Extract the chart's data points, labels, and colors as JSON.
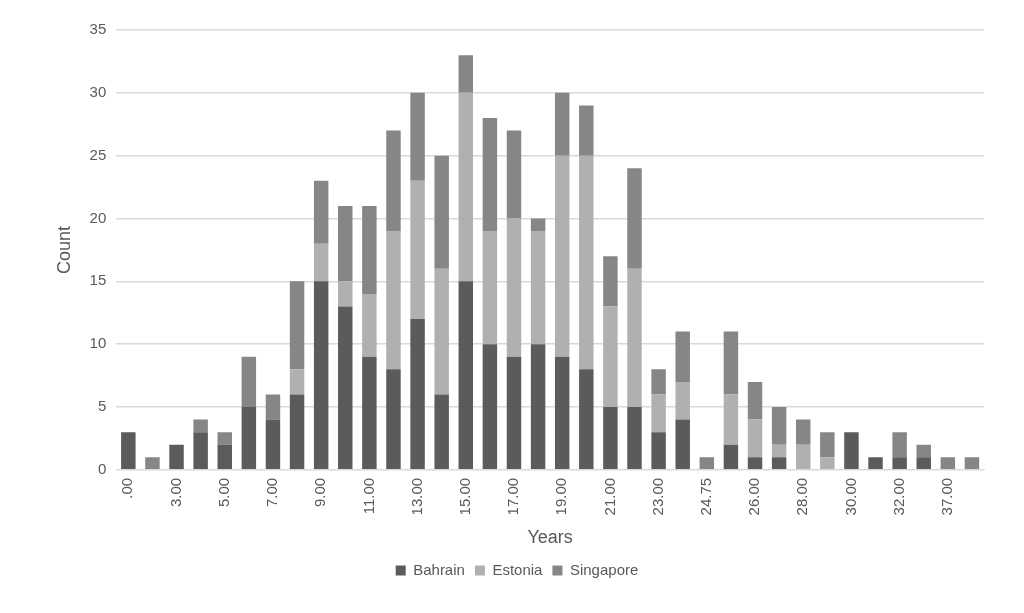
{
  "chart_data": {
    "type": "bar",
    "stacked": true,
    "xlabel": "Years",
    "ylabel": "Count",
    "categories": [
      ".00",
      null,
      "3.00",
      null,
      "5.00",
      null,
      "7.00",
      null,
      "9.00",
      null,
      "11.00",
      null,
      "13.00",
      null,
      "15.00",
      null,
      "17.00",
      null,
      "19.00",
      null,
      "21.00",
      null,
      "23.00",
      null,
      "24.75",
      null,
      "26.00",
      null,
      "28.00",
      null,
      "30.00",
      null,
      "32.00",
      null,
      "37.00",
      null
    ],
    "series": [
      {
        "name": "Bahrain",
        "color": "#5b5b5b",
        "values": [
          3,
          0,
          2,
          3,
          2,
          5,
          4,
          6,
          15,
          13,
          9,
          8,
          12,
          6,
          15,
          10,
          9,
          10,
          9,
          8,
          5,
          5,
          3,
          4,
          0,
          2,
          1,
          1,
          0,
          0,
          3,
          1,
          1,
          1,
          0,
          0
        ]
      },
      {
        "name": "Estonia",
        "color": "#b0b0b0",
        "values": [
          0,
          0,
          0,
          0,
          0,
          0,
          0,
          2,
          3,
          2,
          5,
          11,
          11,
          10,
          15,
          9,
          11,
          9,
          16,
          17,
          8,
          11,
          3,
          3,
          0,
          4,
          3,
          1,
          2,
          1,
          0,
          0,
          0,
          0,
          0,
          0
        ]
      },
      {
        "name": "Singapore",
        "color": "#868686",
        "values": [
          0,
          1,
          0,
          1,
          1,
          4,
          2,
          7,
          5,
          6,
          7,
          8,
          7,
          9,
          3,
          9,
          7,
          1,
          5,
          4,
          4,
          8,
          2,
          4,
          1,
          5,
          3,
          3,
          2,
          2,
          0,
          0,
          2,
          1,
          1,
          1
        ]
      }
    ],
    "ylim": [
      0,
      35
    ],
    "yticks": [
      0,
      5,
      10,
      15,
      20,
      25,
      30,
      35
    ],
    "grid": "y",
    "legend": "bottom"
  }
}
